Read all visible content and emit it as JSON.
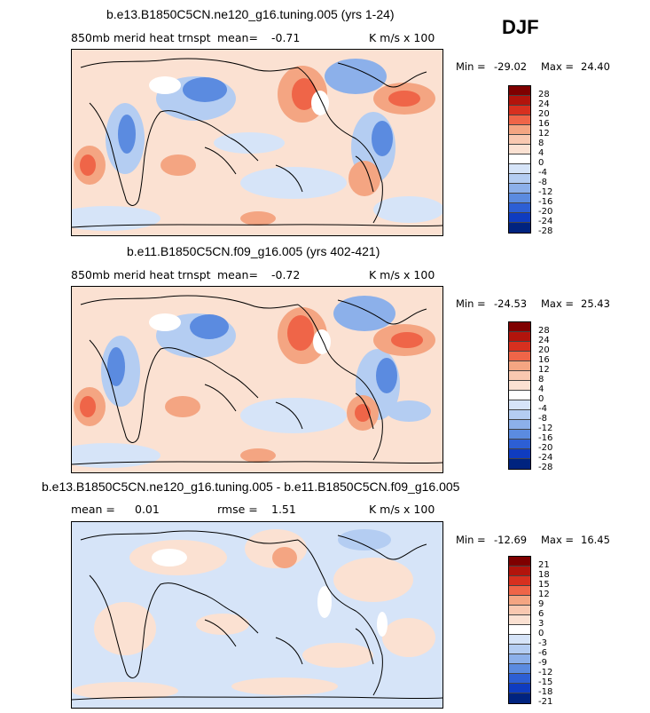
{
  "season": "DJF",
  "panels": [
    {
      "title": "b.e13.B1850C5CN.ne120_g16.tuning.005 (yrs 1-24)",
      "left_label": "850mb merid heat trnspt",
      "stat_label": "mean=",
      "stat_value": "-0.71",
      "stat2_label": "",
      "stat2_value": "",
      "units": "K m/s x 100",
      "min_label": "Min =",
      "min_value": "-29.02",
      "max_label": "Max =",
      "max_value": "24.40",
      "colorbar": [
        "28",
        "24",
        "20",
        "16",
        "12",
        "8",
        "4",
        "0",
        "-4",
        "-8",
        "-12",
        "-16",
        "-20",
        "-24",
        "-28"
      ]
    },
    {
      "title": "b.e11.B1850C5CN.f09_g16.005 (yrs 402-421)",
      "left_label": "850mb merid heat trnspt",
      "stat_label": "mean=",
      "stat_value": "-0.72",
      "stat2_label": "",
      "stat2_value": "",
      "units": "K m/s x 100",
      "min_label": "Min =",
      "min_value": "-24.53",
      "max_label": "Max =",
      "max_value": "25.43",
      "colorbar": [
        "28",
        "24",
        "20",
        "16",
        "12",
        "8",
        "4",
        "0",
        "-4",
        "-8",
        "-12",
        "-16",
        "-20",
        "-24",
        "-28"
      ]
    },
    {
      "title": "b.e13.B1850C5CN.ne120_g16.tuning.005 - b.e11.B1850C5CN.f09_g16.005",
      "left_label": "mean =",
      "stat_label": "",
      "stat_value": "0.01",
      "stat2_label": "rmse =",
      "stat2_value": "1.51",
      "units": "K m/s x 100",
      "min_label": "Min =",
      "min_value": "-12.69",
      "max_label": "Max =",
      "max_value": "16.45",
      "colorbar": [
        "21",
        "18",
        "15",
        "12",
        "9",
        "6",
        "3",
        "0",
        "-3",
        "-6",
        "-9",
        "-12",
        "-15",
        "-18",
        "-21"
      ]
    }
  ],
  "colors": {
    "scale": [
      "#7f0000",
      "#b2140c",
      "#d7301f",
      "#ef6548",
      "#f4a582",
      "#f9c8b0",
      "#fbe1d2",
      "#ffffff",
      "#d6e4f8",
      "#b4cdf2",
      "#8cb0ea",
      "#5b8be0",
      "#2d5fd4",
      "#0f3cc0",
      "#00237f",
      "#000080"
    ],
    "land_outline": "#000000"
  }
}
